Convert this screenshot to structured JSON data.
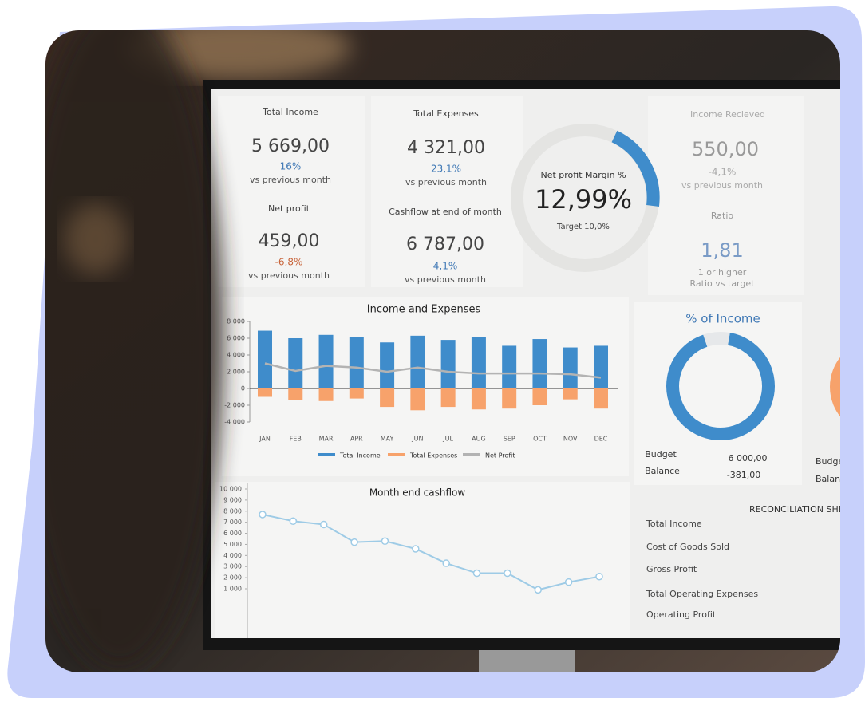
{
  "dashboard": {
    "kpis": [
      {
        "label": "Total Income",
        "value": "5 669,00",
        "change": "16%",
        "note": "vs previous month"
      },
      {
        "label": "Total Expenses",
        "value": "4 321,00",
        "change": "23,1%",
        "note": "vs previous month"
      },
      {
        "label": "Net profit",
        "value": "459,00",
        "change": "-6,8%",
        "note": "vs previous month"
      },
      {
        "label": "Cashflow at end of month",
        "value": "6 787,00",
        "change": "4,1%",
        "note": "vs previous month"
      }
    ],
    "margin": {
      "label": "Net profit Margin %",
      "value": "12,99%",
      "target": "Target 10,0%"
    },
    "received": {
      "label": "Income Recieved",
      "value": "550,00",
      "change": "-4,1%",
      "note": "vs previous month"
    },
    "ratio": {
      "label": "Ratio",
      "value": "1,81",
      "note1": "1 or higher",
      "note2": "Ratio vs target"
    },
    "income_share": {
      "budget_label": "Budget",
      "budget": "6 000,00",
      "balance_label": "Balance",
      "balance": "-381,00",
      "budget_label_2": "Budget",
      "balance_label_2": "Balance"
    },
    "reconciliation": {
      "title": "RECONCILIATION SHEET",
      "items": [
        "Total Income",
        "Cost of Goods Sold",
        "Gross Profit",
        "Total Operating Expenses",
        "Operating Profit"
      ]
    }
  },
  "chart_data": [
    {
      "type": "bar",
      "title": "Income and Expenses",
      "categories": [
        "JAN",
        "FEB",
        "MAR",
        "APR",
        "MAY",
        "JUN",
        "JUL",
        "AUG",
        "SEP",
        "OCT",
        "NOV",
        "DEC"
      ],
      "series": [
        {
          "name": "Total Income",
          "color": "#3f8ccb",
          "values": [
            6900,
            6000,
            6400,
            6100,
            5500,
            6300,
            5800,
            6100,
            5100,
            5900,
            4900,
            5100
          ]
        },
        {
          "name": "Total Expenses",
          "color": "#f7a26b",
          "values": [
            -1000,
            -1400,
            -1500,
            -1200,
            -2200,
            -2600,
            -2200,
            -2500,
            -2400,
            -2000,
            -1300,
            -2400
          ]
        },
        {
          "name": "Net Profit",
          "color": "#b3b3b3",
          "type": "line",
          "values": [
            3000,
            2100,
            2700,
            2500,
            2000,
            2500,
            2000,
            1800,
            1800,
            1800,
            1700,
            1300
          ]
        }
      ],
      "ylim": [
        -4000,
        8000
      ],
      "yticks": [
        {
          "value": -4000,
          "label": "-4 000"
        },
        {
          "value": -2000,
          "label": "-2 000"
        },
        0,
        {
          "value": 2000,
          "label": "2 000"
        },
        {
          "value": 4000,
          "label": "4 000"
        },
        {
          "value": 6000,
          "label": "6 000"
        },
        {
          "value": 8000,
          "label": "8 000"
        }
      ]
    },
    {
      "type": "line",
      "title": "Month end cashflow",
      "categories": [
        null,
        null,
        null,
        null,
        null,
        null,
        null,
        null,
        null,
        null,
        null,
        null
      ],
      "color": "#9ecbe6",
      "values": [
        7700,
        7100,
        6800,
        5200,
        5300,
        4600,
        3300,
        2400,
        2400,
        900,
        1600,
        2100
      ],
      "ylim": [
        0,
        10000
      ],
      "yticks": [
        {
          "value": 1000,
          "label": "1 000"
        },
        {
          "value": 2000,
          "label": "2 000"
        },
        {
          "value": 3000,
          "label": "3 000"
        },
        {
          "value": 4000,
          "label": "4 000"
        },
        {
          "value": 5000,
          "label": "5 000"
        },
        {
          "value": 6000,
          "label": "6 000"
        },
        {
          "value": 7000,
          "label": "7 000"
        },
        {
          "value": 8000,
          "label": "8 000"
        },
        {
          "value": 9000,
          "label": "9 000"
        },
        {
          "value": 10000,
          "label": "10 000"
        }
      ]
    },
    {
      "type": "pie",
      "title": "% of Income",
      "colors": [
        "#3f8ccb",
        "#e6e8ea"
      ],
      "values": [
        92,
        8
      ]
    }
  ]
}
